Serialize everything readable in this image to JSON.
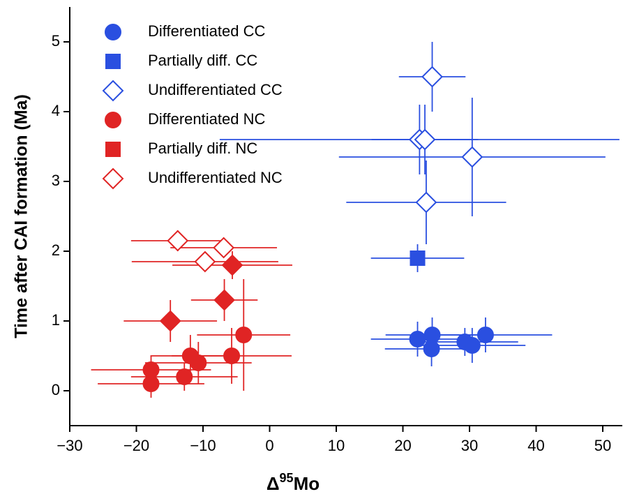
{
  "chart_data": {
    "type": "scatter",
    "xlabel": {
      "symbol": "Δ",
      "superscript": "95",
      "element": "Mo"
    },
    "ylabel": "Time after CAI formation (Ma)",
    "xlim": [
      -30,
      53
    ],
    "ylim": [
      -0.5,
      5.5
    ],
    "xticks": [
      {
        "value": -30,
        "label": "−30"
      },
      {
        "value": -20,
        "label": "−20"
      },
      {
        "value": -10,
        "label": "−10"
      },
      0,
      10,
      20,
      30,
      40,
      50
    ],
    "yticks": [
      0,
      1,
      2,
      3,
      4,
      5
    ],
    "legend": "upper left",
    "series": [
      {
        "name": "Differentiated CC",
        "color": "#2a4fe0",
        "marker": "circle",
        "filled": true,
        "x": [
          22.2,
          24.4,
          24.3,
          29.3,
          30.4,
          32.4
        ],
        "y": [
          0.74,
          0.8,
          0.6,
          0.7,
          0.65,
          0.8
        ],
        "xerr": [
          7,
          7,
          7,
          8,
          8,
          10
        ],
        "yerr": [
          0.25,
          0.25,
          0.25,
          0.2,
          0.25,
          0.25
        ]
      },
      {
        "name": "Partially diff. CC",
        "color": "#2a4fe0",
        "marker": "square",
        "filled": true,
        "x": [
          22.2
        ],
        "y": [
          1.9
        ],
        "xerr": [
          7
        ],
        "yerr": [
          0.2
        ]
      },
      {
        "name": "Undifferentiated CC",
        "color": "#2a4fe0",
        "marker": "diamond",
        "filled": false,
        "x": [
          24.4,
          22.5,
          23.3,
          30.4,
          23.5
        ],
        "y": [
          4.5,
          3.6,
          3.6,
          3.35,
          2.7
        ],
        "xerr": [
          5,
          30,
          8,
          20,
          12
        ],
        "yerr": [
          0.5,
          0.5,
          0.5,
          0.85,
          0.6
        ]
      },
      {
        "name": "Differentiated NC",
        "color": "#e02424",
        "marker": "circle",
        "filled": true,
        "x": [
          -3.9,
          -5.7,
          -11.9,
          -10.7,
          -12.8,
          -17.8,
          -17.8
        ],
        "y": [
          0.8,
          0.5,
          0.5,
          0.4,
          0.2,
          0.3,
          0.1
        ],
        "xerr": [
          7,
          9,
          6,
          8,
          8,
          9,
          8
        ],
        "yerr": [
          0.8,
          0.4,
          0.3,
          0.3,
          0.2,
          0.2,
          0.2
        ]
      },
      {
        "name": "Partially diff. NC",
        "color": "#e02424",
        "marker": "diamond",
        "legend_marker": "square",
        "filled": true,
        "x": [
          -5.6,
          -6.8,
          -14.9
        ],
        "y": [
          1.8,
          1.3,
          1.0
        ],
        "xerr": [
          9,
          5,
          7
        ],
        "yerr": [
          0.2,
          0.3,
          0.3
        ]
      },
      {
        "name": "Undifferentiated NC",
        "color": "#e02424",
        "marker": "diamond",
        "filled": false,
        "x": [
          -13.8,
          -6.9,
          -9.7
        ],
        "y": [
          2.15,
          2.05,
          1.85
        ],
        "xerr": [
          7,
          8,
          11
        ],
        "yerr": [
          0.15,
          0.1,
          0.1
        ]
      }
    ]
  }
}
